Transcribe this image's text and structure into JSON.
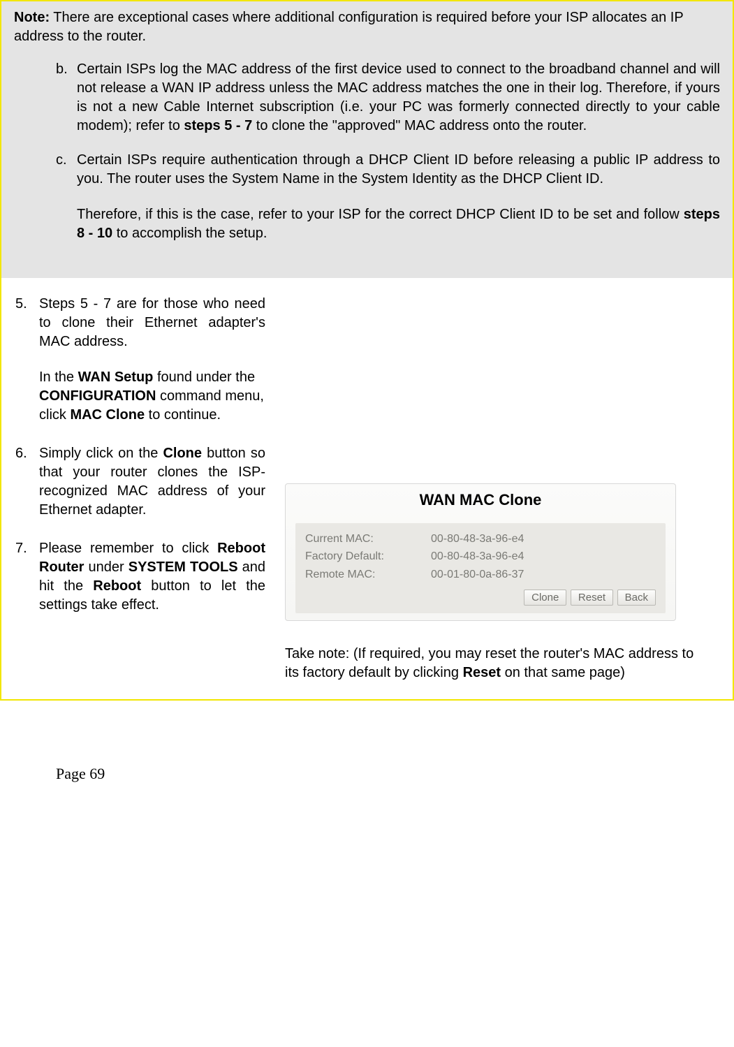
{
  "note": {
    "lead_prefix": "Note:",
    "lead_text": " There are exceptional cases where additional configuration is required before your ISP allocates an IP address to the router.",
    "items": [
      {
        "marker": "b.",
        "text_before": "Certain ISPs log the MAC address of the first device used to connect to the broadband channel and will not release a WAN IP address unless the MAC address matches the one in their log. Therefore, if yours is not a new Cable Internet subscription (i.e. your PC was formerly connected directly to your cable modem); refer to ",
        "bold1": "steps 5 - 7",
        "text_after": " to clone the \"approved\" MAC address onto the router."
      },
      {
        "marker": "c.",
        "text_before": "Certain ISPs require authentication through a DHCP Client ID before releasing a public IP address to you. The router uses the System Name in the System Identity as the DHCP Client ID.",
        "follow_before": "Therefore, if this is the case, refer to your ISP for the correct DHCP Client ID to be set and follow ",
        "follow_bold": "steps 8 - 10",
        "follow_after": " to accomplish the setup."
      }
    ]
  },
  "steps": [
    {
      "num": "5.",
      "p1": "Steps 5 - 7 are for those who need to clone their Ethernet adapter's MAC address.",
      "p2_a": "In the ",
      "p2_b1": "WAN Setup",
      "p2_b": " found under the ",
      "p2_b2": "CONFIGURATION",
      "p2_c": " command menu, click ",
      "p2_b3": "MAC Clone",
      "p2_d": " to continue."
    },
    {
      "num": "6.",
      "p1_a": "Simply click on the ",
      "p1_b1": "Clone",
      "p1_b": " button so that your router clones the ISP-recognized MAC address of your Ethernet adapter."
    },
    {
      "num": "7.",
      "p1_a": "Please remember to click ",
      "p1_b1": "Reboot Router",
      "p1_b": " under ",
      "p1_b2": "SYSTEM TOOLS",
      "p1_c": " and hit the ",
      "p1_b3": "Reboot",
      "p1_d": " button to let the settings take effect."
    }
  ],
  "panel": {
    "title": "WAN MAC Clone",
    "rows": [
      {
        "label": "Current MAC:",
        "value": "00-80-48-3a-96-e4"
      },
      {
        "label": "Factory Default:",
        "value": "00-80-48-3a-96-e4"
      },
      {
        "label": "Remote MAC:",
        "value": "00-01-80-0a-86-37"
      }
    ],
    "buttons": {
      "clone": "Clone",
      "reset": "Reset",
      "back": "Back"
    }
  },
  "take_note": {
    "a": "Take note: (If required, you may reset the router's MAC address to its factory default by clicking ",
    "b": "Reset",
    "c": " on that same page)"
  },
  "page_number": "Page 69"
}
